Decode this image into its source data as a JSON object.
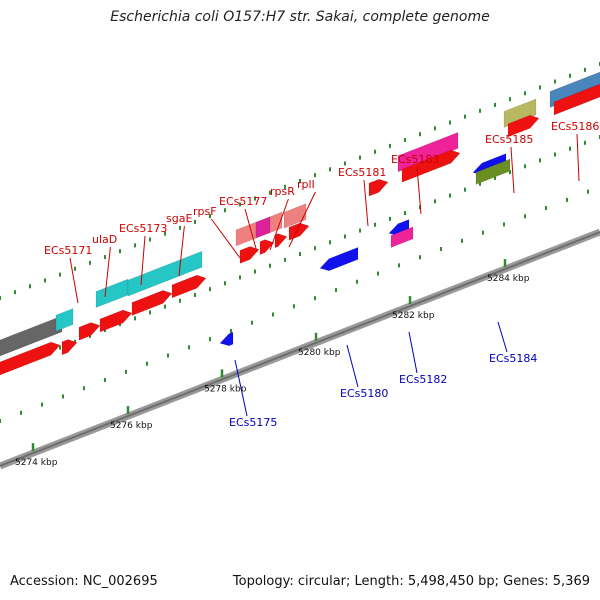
{
  "title": "Escherichia coli O157:H7 str. Sakai, complete genome",
  "footer": {
    "accession": "Accession: NC_002695",
    "info": "Topology: circular; Length: 5,498,450 bp; Genes: 5,369"
  },
  "colors": {
    "forward_label": "#cc0000",
    "reverse_label": "#0000bb",
    "tick": "#228b22",
    "backbone": "#888888"
  },
  "ticks": [
    {
      "label": "5274 kbp"
    },
    {
      "label": "5276 kbp"
    },
    {
      "label": "5278 kbp"
    },
    {
      "label": "5280 kbp"
    },
    {
      "label": "5282 kbp"
    },
    {
      "label": "5284 kbp"
    }
  ],
  "labels_top": [
    "ECs5171",
    "ulaD",
    "ECs5173",
    "sgaE",
    "rpsF",
    "ECs5177",
    "rpsR",
    "rplI",
    "ECs5181",
    "ECs5183",
    "ECs5185",
    "ECs5186"
  ],
  "labels_bottom": [
    "ECs5175",
    "ECs5180",
    "ECs5182",
    "ECs5184"
  ]
}
